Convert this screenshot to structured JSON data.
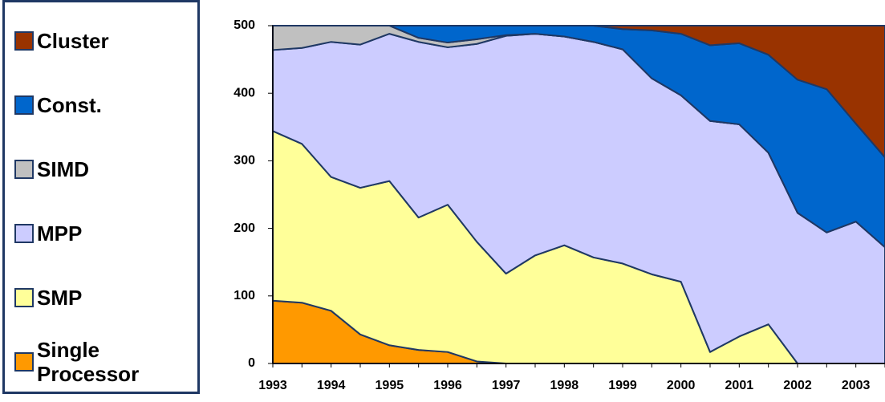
{
  "chart_data": {
    "type": "stacked-area",
    "categories": [
      "1993",
      null,
      "1994",
      null,
      "1995",
      null,
      "1996",
      null,
      "1997",
      null,
      "1998",
      null,
      "1999",
      null,
      "2000",
      null,
      "2001",
      null,
      "2002",
      null,
      "2003",
      null
    ],
    "series": [
      {
        "name": "Single Processor",
        "color": "#ff9900",
        "values": [
          93,
          90,
          78,
          43,
          27,
          20,
          17,
          3,
          0,
          0,
          0,
          0,
          0,
          0,
          0,
          0,
          0,
          0,
          0,
          0,
          0,
          0
        ]
      },
      {
        "name": "SMP",
        "color": "#ffff99",
        "values": [
          251,
          235,
          198,
          217,
          243,
          196,
          218,
          177,
          133,
          160,
          175,
          157,
          148,
          132,
          121,
          17,
          40,
          58,
          0,
          0,
          0,
          0
        ]
      },
      {
        "name": "MPP",
        "color": "#ccccff",
        "values": [
          120,
          142,
          200,
          212,
          218,
          260,
          233,
          293,
          352,
          328,
          309,
          319,
          317,
          290,
          276,
          342,
          314,
          254,
          223,
          194,
          210,
          172
        ]
      },
      {
        "name": "SIMD",
        "color": "#c0c0c0",
        "values": [
          36,
          33,
          24,
          28,
          12,
          6,
          7,
          7,
          1,
          0,
          0,
          0,
          0,
          0,
          0,
          0,
          0,
          0,
          0,
          0,
          0,
          0
        ]
      },
      {
        "name": "Const.",
        "color": "#0066cc",
        "values": [
          0,
          0,
          0,
          0,
          0,
          18,
          25,
          20,
          14,
          12,
          16,
          24,
          30,
          71,
          91,
          112,
          120,
          145,
          197,
          212,
          145,
          133
        ]
      },
      {
        "name": "Cluster",
        "color": "#993300",
        "values": [
          0,
          0,
          0,
          0,
          0,
          0,
          0,
          0,
          0,
          0,
          0,
          0,
          5,
          7,
          12,
          29,
          26,
          43,
          80,
          94,
          145,
          195
        ]
      }
    ],
    "ylim": [
      0,
      500
    ],
    "yticks": [
      0,
      100,
      200,
      300,
      400,
      500
    ]
  }
}
